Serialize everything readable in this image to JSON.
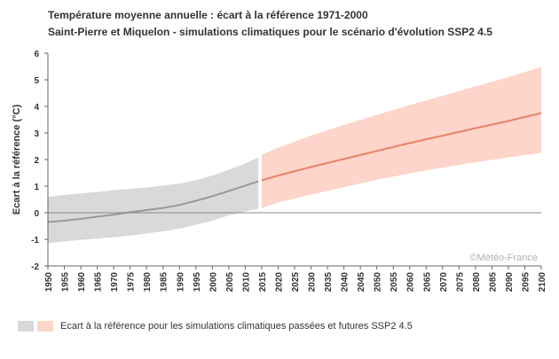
{
  "header": {
    "title": "Température moyenne annuelle : écart à la référence 1971-2000",
    "subtitle": "Saint-Pierre et Miquelon - simulations climatiques pour le scénario d'évolution SSP2 4.5"
  },
  "legend": {
    "label": "Ecart à la référence pour les simulations climatiques passées et futures SSP2 4.5"
  },
  "watermark": "©Météo-France",
  "colors": {
    "past_band": "#d9d9d9",
    "past_line": "#999999",
    "future_band": "#fdd5ca",
    "future_line": "#e8836a",
    "axis": "#666666"
  },
  "chart_data": {
    "type": "area",
    "title": "Température moyenne annuelle : écart à la référence 1971-2000",
    "subtitle": "Saint-Pierre et Miquelon - simulations climatiques pour le scénario d'évolution SSP2 4.5",
    "ylabel": "Ecart à la référence (°C)",
    "xlabel": "",
    "xlim": [
      1950,
      2100
    ],
    "ylim": [
      -2,
      6
    ],
    "x_ticks": [
      1950,
      1955,
      1960,
      1965,
      1970,
      1975,
      1980,
      1985,
      1990,
      1995,
      2000,
      2005,
      2010,
      2015,
      2020,
      2025,
      2030,
      2035,
      2040,
      2045,
      2050,
      2055,
      2060,
      2065,
      2070,
      2075,
      2080,
      2085,
      2090,
      2095,
      2100
    ],
    "y_ticks": [
      -2,
      -1,
      0,
      1,
      2,
      3,
      4,
      5,
      6
    ],
    "grid": false,
    "zero_line": true,
    "series": [
      {
        "name": "Ecart à la référence pour les simulations climatiques passées et futures SSP2 4.5",
        "period": "past",
        "x": [
          1950,
          1955,
          1960,
          1965,
          1970,
          1975,
          1980,
          1985,
          1990,
          1995,
          2000,
          2005,
          2010,
          2014
        ],
        "mean": [
          -0.35,
          -0.3,
          -0.23,
          -0.15,
          -0.07,
          0.02,
          0.1,
          0.18,
          0.29,
          0.45,
          0.62,
          0.82,
          1.02,
          1.18
        ],
        "lower": [
          -1.15,
          -1.08,
          -1.02,
          -0.97,
          -0.92,
          -0.86,
          -0.78,
          -0.7,
          -0.6,
          -0.45,
          -0.3,
          -0.1,
          0.05,
          0.15
        ],
        "upper": [
          0.6,
          0.67,
          0.73,
          0.78,
          0.85,
          0.9,
          0.95,
          1.02,
          1.1,
          1.22,
          1.4,
          1.62,
          1.85,
          2.08
        ]
      },
      {
        "name": "Ecart à la référence pour les simulations climatiques passées et futures SSP2 4.5",
        "period": "future",
        "x": [
          2015,
          2020,
          2030,
          2040,
          2050,
          2060,
          2070,
          2080,
          2090,
          2100
        ],
        "mean": [
          1.22,
          1.4,
          1.72,
          2.02,
          2.32,
          2.62,
          2.9,
          3.18,
          3.45,
          3.75
        ],
        "lower": [
          0.18,
          0.38,
          0.68,
          0.96,
          1.24,
          1.48,
          1.7,
          1.9,
          2.08,
          2.25
        ],
        "upper": [
          2.18,
          2.45,
          2.9,
          3.3,
          3.68,
          4.05,
          4.4,
          4.75,
          5.1,
          5.48
        ]
      }
    ]
  }
}
